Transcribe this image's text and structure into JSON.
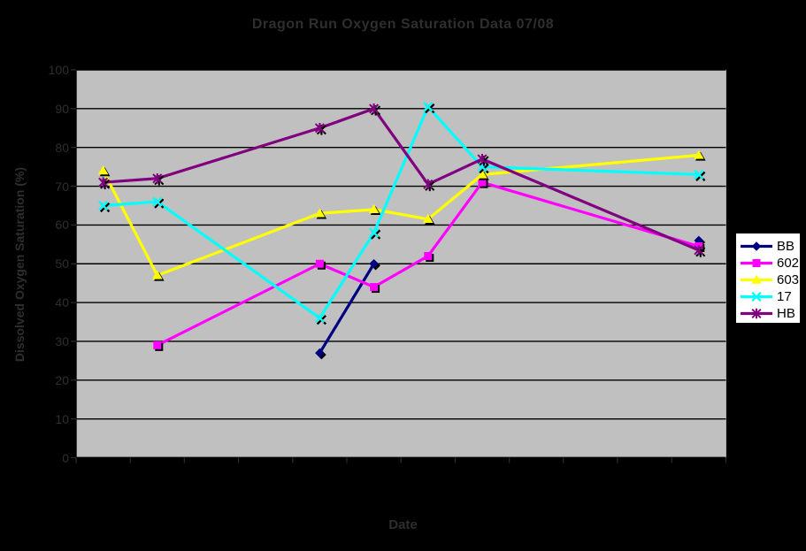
{
  "chart_data": {
    "type": "line",
    "title": "Dragon Run Oxygen Saturation Data 07/08",
    "xlabel": "Date",
    "ylabel": "Dissolved Oxygen Saturation (%)",
    "ylim": [
      0,
      100
    ],
    "yticks": [
      0,
      10,
      20,
      30,
      40,
      50,
      60,
      70,
      80,
      90,
      100
    ],
    "n_categories": 12,
    "x_tick_labels_visible": false,
    "grid": "horizontal-only",
    "legend_position": "right",
    "series": [
      {
        "name": "BB",
        "color": "#000080",
        "marker": "diamond",
        "segments": [
          [
            [
              4,
              27
            ],
            [
              5,
              50
            ]
          ],
          [
            [
              11,
              56
            ]
          ]
        ]
      },
      {
        "name": "602",
        "color": "#FF00FF",
        "marker": "square",
        "segments": [
          [
            [
              1,
              29
            ],
            [
              4,
              50
            ],
            [
              5,
              44
            ],
            [
              6,
              52
            ],
            [
              7,
              71
            ],
            [
              11,
              54.5
            ]
          ]
        ]
      },
      {
        "name": "603",
        "color": "#FFFF00",
        "marker": "triangle",
        "segments": [
          [
            [
              0,
              74
            ],
            [
              1,
              47
            ],
            [
              4,
              63
            ],
            [
              5,
              64
            ],
            [
              6,
              61.5
            ],
            [
              7,
              73
            ],
            [
              11,
              78
            ]
          ]
        ]
      },
      {
        "name": "17",
        "color": "#00FFFF",
        "marker": "x",
        "segments": [
          [
            [
              0,
              65
            ],
            [
              1,
              66
            ],
            [
              4,
              36
            ],
            [
              5,
              58
            ],
            [
              6,
              90.5
            ],
            [
              7,
              75
            ],
            [
              11,
              73
            ]
          ]
        ]
      },
      {
        "name": "HB",
        "color": "#800080",
        "marker": "star",
        "segments": [
          [
            [
              0,
              71
            ],
            [
              1,
              72
            ],
            [
              4,
              85
            ],
            [
              5,
              90
            ],
            [
              6,
              70.5
            ],
            [
              7,
              77
            ],
            [
              11,
              53.5
            ]
          ]
        ]
      }
    ]
  },
  "colors": {
    "background": "#000000",
    "plot_bg": "#C0C0C0",
    "gridline": "#000000",
    "axis_line": "#000000",
    "outer_tick": "#2a2a2a",
    "faint_text": "#2e2e2e",
    "legend_bg": "#FFFFFF",
    "legend_border": "#000000",
    "legend_text": "#000000",
    "marker_shadow": "#000000"
  }
}
